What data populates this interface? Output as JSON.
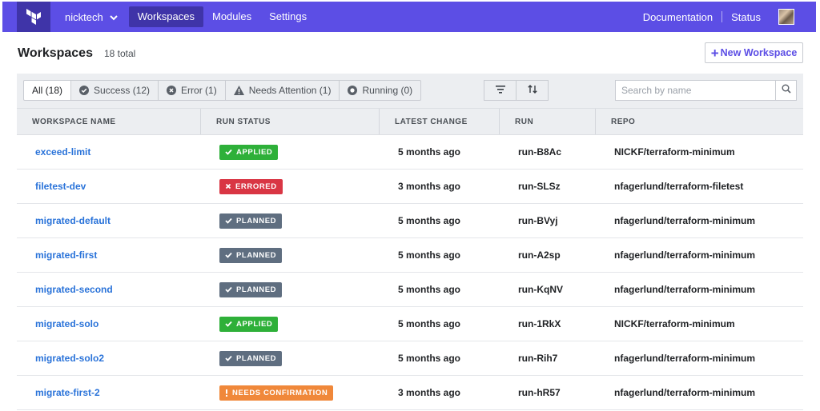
{
  "nav": {
    "org": "nicktech",
    "links": [
      "Workspaces",
      "Modules",
      "Settings"
    ],
    "documentation": "Documentation",
    "status": "Status"
  },
  "header": {
    "title": "Workspaces",
    "total": "18 total",
    "new_button": "New Workspace"
  },
  "filters": {
    "tabs": [
      {
        "label": "All (18)",
        "icon": ""
      },
      {
        "label": "Success (12)",
        "icon": "check-circle-icon"
      },
      {
        "label": "Error (1)",
        "icon": "x-circle-icon"
      },
      {
        "label": "Needs Attention (1)",
        "icon": "warning-icon"
      },
      {
        "label": "Running (0)",
        "icon": "running-icon"
      }
    ],
    "search_placeholder": "Search by name"
  },
  "table": {
    "columns": [
      "WORKSPACE NAME",
      "RUN STATUS",
      "LATEST CHANGE",
      "RUN",
      "REPO"
    ],
    "rows": [
      {
        "name": "exceed-limit",
        "status": "APPLIED",
        "status_kind": "applied",
        "change": "5 months ago",
        "run": "run-B8Ac",
        "repo": "NICKF/terraform-minimum"
      },
      {
        "name": "filetest-dev",
        "status": "ERRORED",
        "status_kind": "errored",
        "change": "3 months ago",
        "run": "run-SLSz",
        "repo": "nfagerlund/terraform-filetest"
      },
      {
        "name": "migrated-default",
        "status": "PLANNED",
        "status_kind": "planned",
        "change": "5 months ago",
        "run": "run-BVyj",
        "repo": "nfagerlund/terraform-minimum"
      },
      {
        "name": "migrated-first",
        "status": "PLANNED",
        "status_kind": "planned",
        "change": "5 months ago",
        "run": "run-A2sp",
        "repo": "nfagerlund/terraform-minimum"
      },
      {
        "name": "migrated-second",
        "status": "PLANNED",
        "status_kind": "planned",
        "change": "5 months ago",
        "run": "run-KqNV",
        "repo": "nfagerlund/terraform-minimum"
      },
      {
        "name": "migrated-solo",
        "status": "APPLIED",
        "status_kind": "applied",
        "change": "5 months ago",
        "run": "run-1RkX",
        "repo": "NICKF/terraform-minimum"
      },
      {
        "name": "migrated-solo2",
        "status": "PLANNED",
        "status_kind": "planned",
        "change": "5 months ago",
        "run": "run-Rih7",
        "repo": "nfagerlund/terraform-minimum"
      },
      {
        "name": "migrate-first-2",
        "status": "NEEDS CONFIRMATION",
        "status_kind": "needs",
        "change": "3 months ago",
        "run": "run-hR57",
        "repo": "nfagerlund/terraform-minimum"
      }
    ]
  },
  "colors": {
    "nav": "#5c4ee5",
    "nav_active": "#3f34a8",
    "link": "#2a73d9",
    "applied": "#2eb039",
    "errored": "#d93644",
    "planned": "#5f6e80",
    "needs": "#f0883a"
  }
}
